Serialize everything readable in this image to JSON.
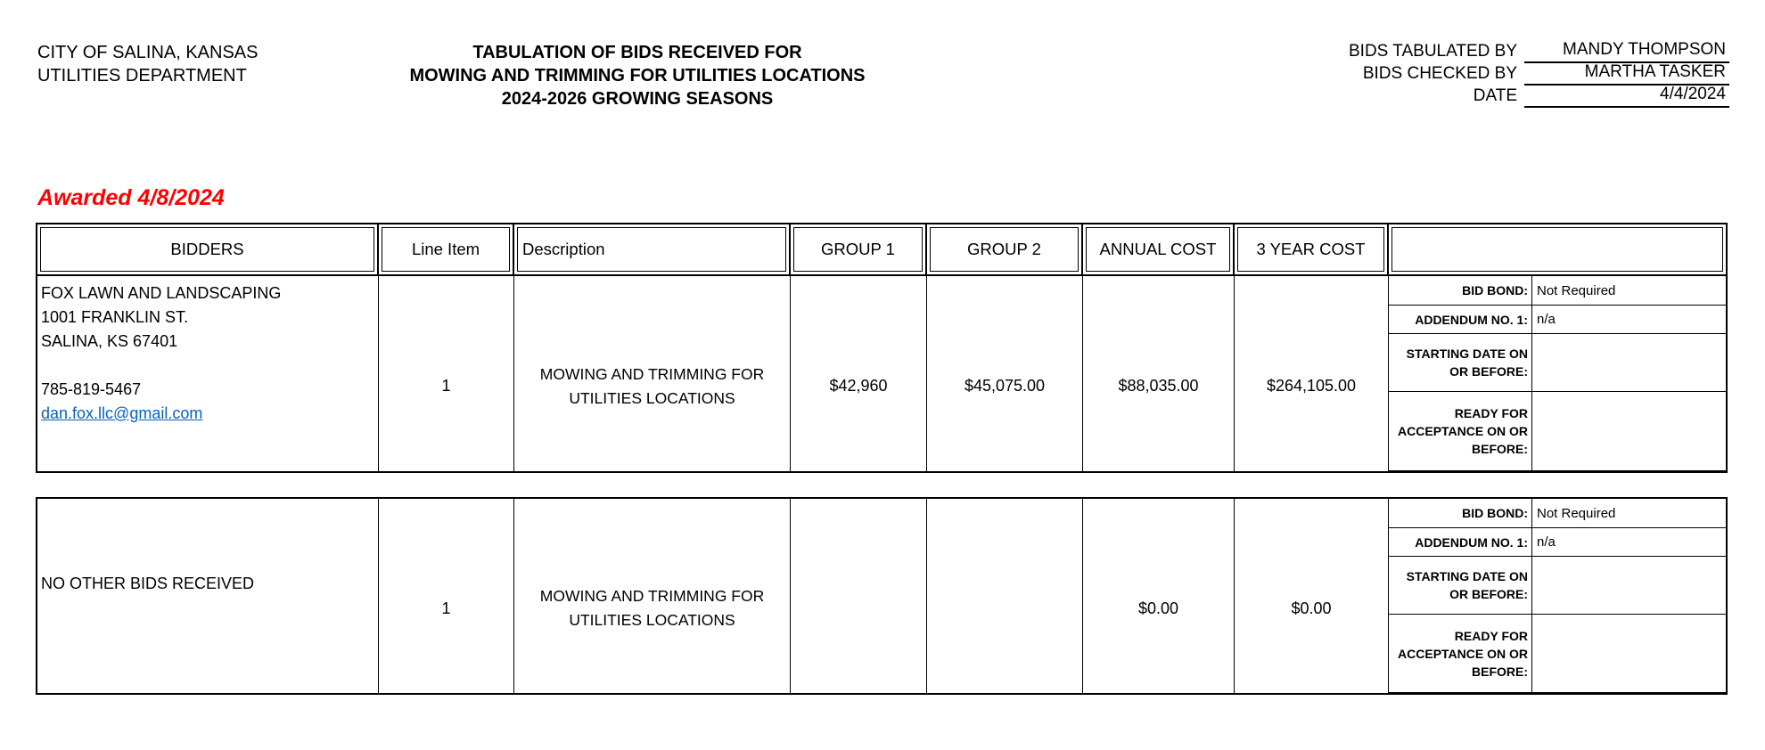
{
  "colors": {
    "awarded_red": "#FF0000",
    "link_blue": "#0563C1"
  },
  "header": {
    "org_lines": [
      "CITY OF SALINA, KANSAS",
      "UTILITIES DEPARTMENT"
    ],
    "title_lines": [
      "TABULATION OF BIDS RECEIVED FOR",
      "MOWING AND TRIMMING FOR UTILITIES LOCATIONS",
      "2024-2026 GROWING SEASONS"
    ],
    "fields": [
      {
        "label": "BIDS TABULATED BY",
        "value": "MANDY THOMPSON"
      },
      {
        "label": "BIDS CHECKED BY",
        "value": "MARTHA TASKER"
      },
      {
        "label": "DATE",
        "value": "4/4/2024"
      }
    ]
  },
  "awarded_note": "Awarded 4/8/2024",
  "table": {
    "headers": {
      "bidders": "BIDDERS",
      "line_item": "Line Item",
      "description": "Description",
      "group1": "GROUP 1",
      "group2": "GROUP 2",
      "annual_cost": "ANNUAL COST",
      "three_year_cost": "3 YEAR COST",
      "notes": ""
    },
    "side_labels": {
      "bid_bond": "BID BOND:",
      "addendum1": "ADDENDUM NO. 1:",
      "starting_date": "STARTING DATE ON\nOR BEFORE:",
      "ready_for_acceptance": "READY FOR\nACCEPTANCE ON OR\nBEFORE:"
    },
    "rows": [
      {
        "bidder": {
          "name": "FOX LAWN AND LANDSCAPING",
          "address_line1": "1001 FRANKLIN ST.",
          "address_line2": "SALINA, KS 67401",
          "phone": "785-819-5467",
          "email": "dan.fox.llc@gmail.com"
        },
        "line_item": "1",
        "description": "MOWING AND TRIMMING FOR\nUTILITIES LOCATIONS",
        "group1": "$42,960",
        "group2": "$45,075.00",
        "annual_cost": "$88,035.00",
        "three_year_cost": "$264,105.00",
        "bid_bond": "Not Required",
        "addendum1": "n/a",
        "starting_date": "",
        "ready_for_acceptance": ""
      },
      {
        "bidder": {
          "note": "NO OTHER BIDS RECEIVED"
        },
        "line_item": "1",
        "description": "MOWING AND TRIMMING FOR\nUTILITIES LOCATIONS",
        "group1": "",
        "group2": "",
        "annual_cost": "$0.00",
        "three_year_cost": "$0.00",
        "bid_bond": "Not Required",
        "addendum1": "n/a",
        "starting_date": "",
        "ready_for_acceptance": ""
      }
    ]
  }
}
